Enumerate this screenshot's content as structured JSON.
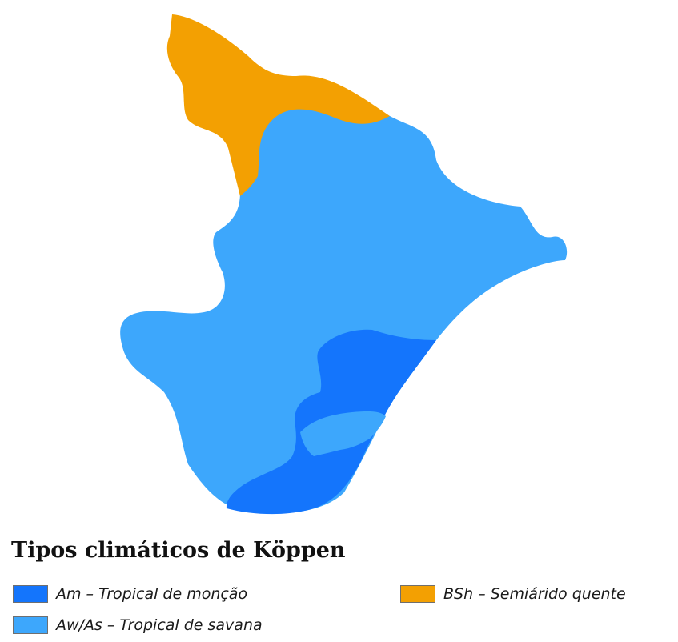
{
  "legend": {
    "title": "Tipos climáticos de Köppen",
    "items": [
      {
        "code": "Am",
        "label": "Am – Tropical de monção",
        "color": "#1475fc"
      },
      {
        "code": "Aw/As",
        "label": "Aw/As – Tropical de savana",
        "color": "#3da7fc"
      },
      {
        "code": "BSh",
        "label": "BSh – Semiárido quente",
        "color": "#f3a002"
      }
    ]
  }
}
